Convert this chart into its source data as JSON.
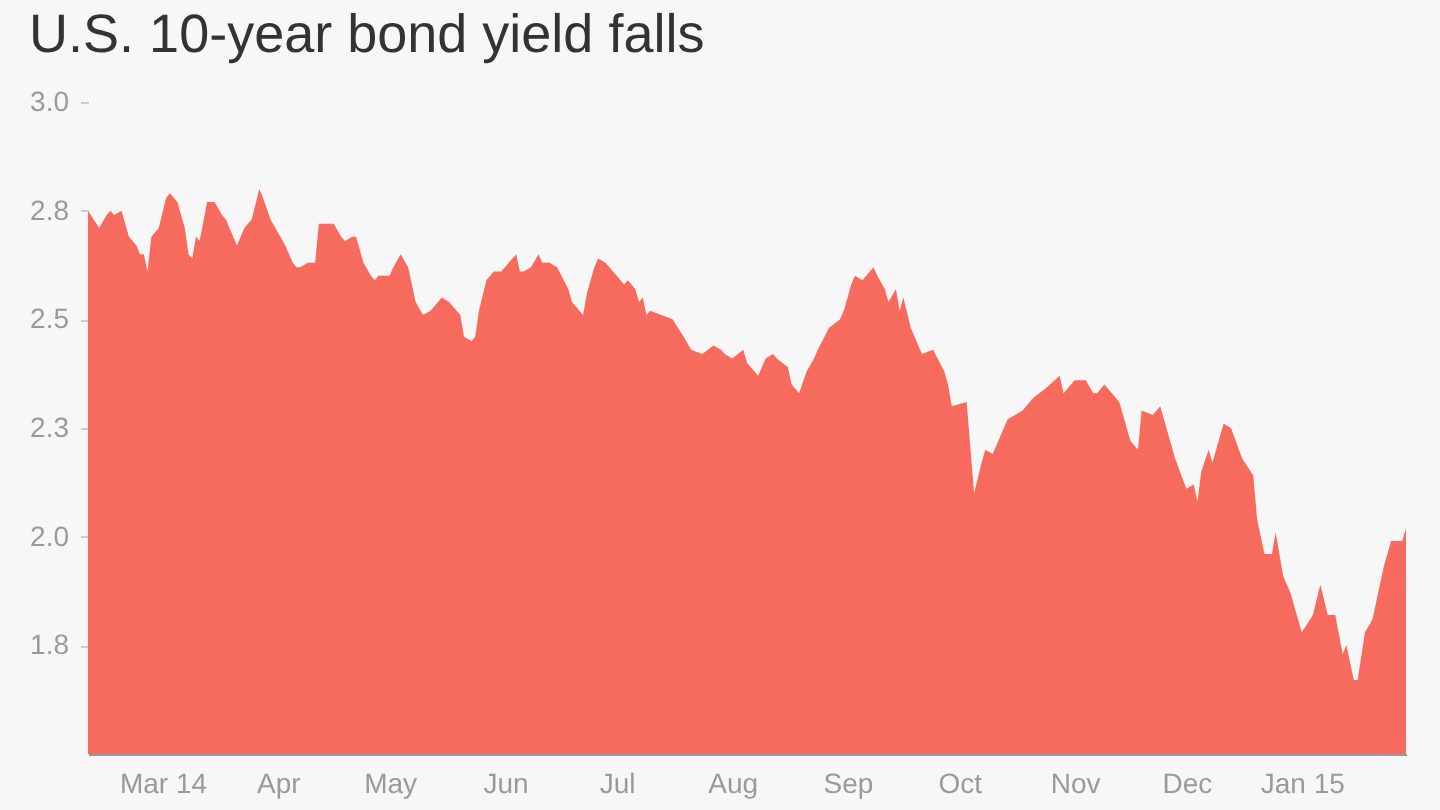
{
  "chart_data": {
    "type": "area",
    "title": "U.S. 10-year bond yield falls",
    "color": "#f76b5e",
    "x": [
      "2014-02-09",
      "2014-02-12",
      "2014-02-14",
      "2014-02-15",
      "2014-02-16",
      "2014-02-18",
      "2014-02-20",
      "2014-02-22",
      "2014-02-23",
      "2014-02-24",
      "2014-02-25",
      "2014-02-26",
      "2014-02-28",
      "2014-03-02",
      "2014-03-03",
      "2014-03-05",
      "2014-03-07",
      "2014-03-08",
      "2014-03-09",
      "2014-03-10",
      "2014-03-11",
      "2014-03-13",
      "2014-03-15",
      "2014-03-17",
      "2014-03-18",
      "2014-03-21",
      "2014-03-23",
      "2014-03-25",
      "2014-03-27",
      "2014-03-28",
      "2014-03-30",
      "2014-04-01",
      "2014-04-03",
      "2014-04-05",
      "2014-04-06",
      "2014-04-07",
      "2014-04-09",
      "2014-04-11",
      "2014-04-12",
      "2014-04-15",
      "2014-04-16",
      "2014-04-18",
      "2014-04-19",
      "2014-04-21",
      "2014-04-22",
      "2014-04-24",
      "2014-04-26",
      "2014-04-27",
      "2014-04-28",
      "2014-05-01",
      "2014-05-02",
      "2014-05-04",
      "2014-05-06",
      "2014-05-07",
      "2014-05-08",
      "2014-05-10",
      "2014-05-12",
      "2014-05-14",
      "2014-05-15",
      "2014-05-17",
      "2014-05-19",
      "2014-05-20",
      "2014-05-21",
      "2014-05-23",
      "2014-05-24",
      "2014-05-25",
      "2014-05-27",
      "2014-05-29",
      "2014-05-31",
      "2014-06-02",
      "2014-06-04",
      "2014-06-05",
      "2014-06-06",
      "2014-06-08",
      "2014-06-10",
      "2014-06-11",
      "2014-06-13",
      "2014-06-15",
      "2014-06-18",
      "2014-06-19",
      "2014-06-21",
      "2014-06-22",
      "2014-06-23",
      "2014-06-25",
      "2014-06-26",
      "2014-06-28",
      "2014-06-30",
      "2014-07-01",
      "2014-07-03",
      "2014-07-04",
      "2014-07-06",
      "2014-07-07",
      "2014-07-08",
      "2014-07-09",
      "2014-07-10",
      "2014-07-13",
      "2014-07-16",
      "2014-07-19",
      "2014-07-21",
      "2014-07-24",
      "2014-07-27",
      "2014-07-29",
      "2014-07-30",
      "2014-08-01",
      "2014-08-04",
      "2014-08-05",
      "2014-08-06",
      "2014-08-08",
      "2014-08-10",
      "2014-08-12",
      "2014-08-13",
      "2014-08-16",
      "2014-08-17",
      "2014-08-19",
      "2014-08-21",
      "2014-08-23",
      "2014-08-24",
      "2014-08-27",
      "2014-08-30",
      "2014-08-31",
      "2014-09-02",
      "2014-09-03",
      "2014-09-05",
      "2014-09-07",
      "2014-09-08",
      "2014-09-09",
      "2014-09-11",
      "2014-09-12",
      "2014-09-14",
      "2014-09-15",
      "2014-09-16",
      "2014-09-18",
      "2014-09-20",
      "2014-09-21",
      "2014-09-24",
      "2014-09-27",
      "2014-09-28",
      "2014-09-29",
      "2014-10-03",
      "2014-10-05",
      "2014-10-07",
      "2014-10-08",
      "2014-10-10",
      "2014-10-14",
      "2014-10-16",
      "2014-10-18",
      "2014-10-21",
      "2014-10-24",
      "2014-10-28",
      "2014-10-29",
      "2014-11-01",
      "2014-11-04",
      "2014-11-06",
      "2014-11-07",
      "2014-11-09",
      "2014-11-13",
      "2014-11-16",
      "2014-11-18",
      "2014-11-19",
      "2014-11-22",
      "2014-11-24",
      "2014-11-28",
      "2014-12-01",
      "2014-12-03",
      "2014-12-04",
      "2014-12-05",
      "2014-12-07",
      "2014-12-08",
      "2014-12-11",
      "2014-12-13",
      "2014-12-16",
      "2014-12-19",
      "2014-12-20",
      "2014-12-22",
      "2014-12-24",
      "2014-12-25",
      "2014-12-27",
      "2014-12-29",
      "2015-01-01",
      "2015-01-04",
      "2015-01-06",
      "2015-01-08",
      "2015-01-10",
      "2015-01-12",
      "2015-01-13",
      "2015-01-15",
      "2015-01-16",
      "2015-01-18",
      "2015-01-20",
      "2015-01-23",
      "2015-01-25",
      "2015-01-28",
      "2015-01-29"
    ],
    "values": [
      2.75,
      2.71,
      2.74,
      2.75,
      2.74,
      2.75,
      2.69,
      2.67,
      2.65,
      2.65,
      2.61,
      2.69,
      2.71,
      2.78,
      2.79,
      2.77,
      2.71,
      2.65,
      2.64,
      2.69,
      2.68,
      2.77,
      2.77,
      2.74,
      2.73,
      2.67,
      2.71,
      2.73,
      2.8,
      2.78,
      2.73,
      2.7,
      2.67,
      2.63,
      2.62,
      2.62,
      2.63,
      2.63,
      2.72,
      2.72,
      2.72,
      2.69,
      2.68,
      2.69,
      2.69,
      2.63,
      2.6,
      2.59,
      2.6,
      2.6,
      2.62,
      2.65,
      2.62,
      2.58,
      2.54,
      2.51,
      2.52,
      2.54,
      2.55,
      2.54,
      2.52,
      2.51,
      2.46,
      2.45,
      2.46,
      2.52,
      2.59,
      2.61,
      2.61,
      2.63,
      2.65,
      2.61,
      2.61,
      2.62,
      2.65,
      2.63,
      2.63,
      2.62,
      2.57,
      2.54,
      2.52,
      2.51,
      2.56,
      2.62,
      2.64,
      2.63,
      2.61,
      2.6,
      2.58,
      2.59,
      2.57,
      2.54,
      2.55,
      2.51,
      2.52,
      2.51,
      2.5,
      2.46,
      2.43,
      2.42,
      2.44,
      2.43,
      2.42,
      2.41,
      2.43,
      2.4,
      2.39,
      2.37,
      2.41,
      2.42,
      2.41,
      2.39,
      2.35,
      2.33,
      2.38,
      2.41,
      2.43,
      2.48,
      2.5,
      2.52,
      2.58,
      2.6,
      2.59,
      2.61,
      2.62,
      2.6,
      2.57,
      2.54,
      2.57,
      2.52,
      2.55,
      2.48,
      2.44,
      2.42,
      2.43,
      2.38,
      2.35,
      2.3,
      2.31,
      2.1,
      2.17,
      2.2,
      2.19,
      2.27,
      2.28,
      2.29,
      2.32,
      2.34,
      2.37,
      2.33,
      2.36,
      2.36,
      2.33,
      2.33,
      2.35,
      2.31,
      2.22,
      2.2,
      2.29,
      2.28,
      2.3,
      2.18,
      2.11,
      2.12,
      2.08,
      2.15,
      2.2,
      2.17,
      2.26,
      2.25,
      2.18,
      2.14,
      2.04,
      1.96,
      1.96,
      2.01,
      1.91,
      1.87,
      1.78,
      1.82,
      1.89,
      1.82,
      1.82,
      1.73,
      1.75,
      1.67,
      1.67,
      1.78,
      1.81,
      1.93,
      1.99,
      1.99,
      2.02
    ],
    "xlim": [
      "2014-02-09",
      "2015-01-29"
    ],
    "xticks": [
      {
        "value": "2014-03-01",
        "label": "Mar 14"
      },
      {
        "value": "2014-04-01",
        "label": "Apr"
      },
      {
        "value": "2014-05-01",
        "label": "May"
      },
      {
        "value": "2014-06-01",
        "label": "Jun"
      },
      {
        "value": "2014-07-01",
        "label": "Jul"
      },
      {
        "value": "2014-08-01",
        "label": "Aug"
      },
      {
        "value": "2014-09-01",
        "label": "Sep"
      },
      {
        "value": "2014-10-01",
        "label": "Oct"
      },
      {
        "value": "2014-11-01",
        "label": "Nov"
      },
      {
        "value": "2014-12-01",
        "label": "Dec"
      },
      {
        "value": "2015-01-01",
        "label": "Jan 15"
      }
    ],
    "ylim": [
      1.5,
      3.0
    ],
    "yticks": [
      {
        "value": 1.75,
        "label": "1.8"
      },
      {
        "value": 2.0,
        "label": "2.0"
      },
      {
        "value": 2.25,
        "label": "2.3"
      },
      2.5,
      {
        "value": 2.75,
        "label": "2.8"
      },
      {
        "value": 3.0,
        "label": "3.0"
      }
    ]
  }
}
